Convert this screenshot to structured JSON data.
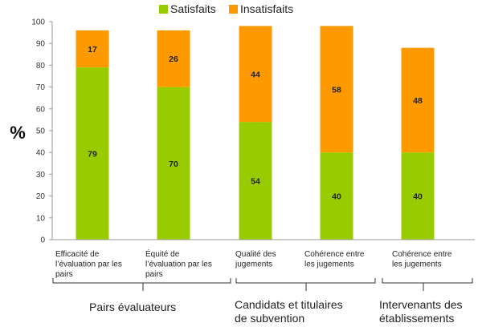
{
  "chart_data": {
    "type": "bar",
    "stacked": true,
    "ylabel": "%",
    "ylim": [
      0,
      100
    ],
    "yticks": [
      0,
      10,
      20,
      30,
      40,
      50,
      60,
      70,
      80,
      90,
      100
    ],
    "grid": false,
    "legend_position": "top",
    "categories": [
      [
        "Efficacité de",
        "l’évaluation par les",
        "pairs"
      ],
      [
        "Équité de",
        "l’évaluation par les",
        "pairs"
      ],
      [
        "Qualité des",
        "jugements"
      ],
      [
        "Cohérence entre",
        "les jugements"
      ],
      [
        "Cohérence entre",
        "les jugements"
      ]
    ],
    "series": [
      {
        "name": "Satisfaits",
        "color": "#99cc00",
        "values": [
          79,
          70,
          54,
          40,
          40
        ]
      },
      {
        "name": "Insatisfaits",
        "color": "#ff9900",
        "values": [
          17,
          26,
          44,
          58,
          48
        ]
      }
    ],
    "groups": [
      {
        "label": [
          "Pairs évaluateurs"
        ],
        "categories": [
          0,
          1
        ]
      },
      {
        "label": [
          "Candidats  et titulaires",
          "de subvention"
        ],
        "categories": [
          2,
          3
        ]
      },
      {
        "label": [
          "Intervenants  des",
          "établissements"
        ],
        "categories": [
          4
        ]
      }
    ]
  }
}
